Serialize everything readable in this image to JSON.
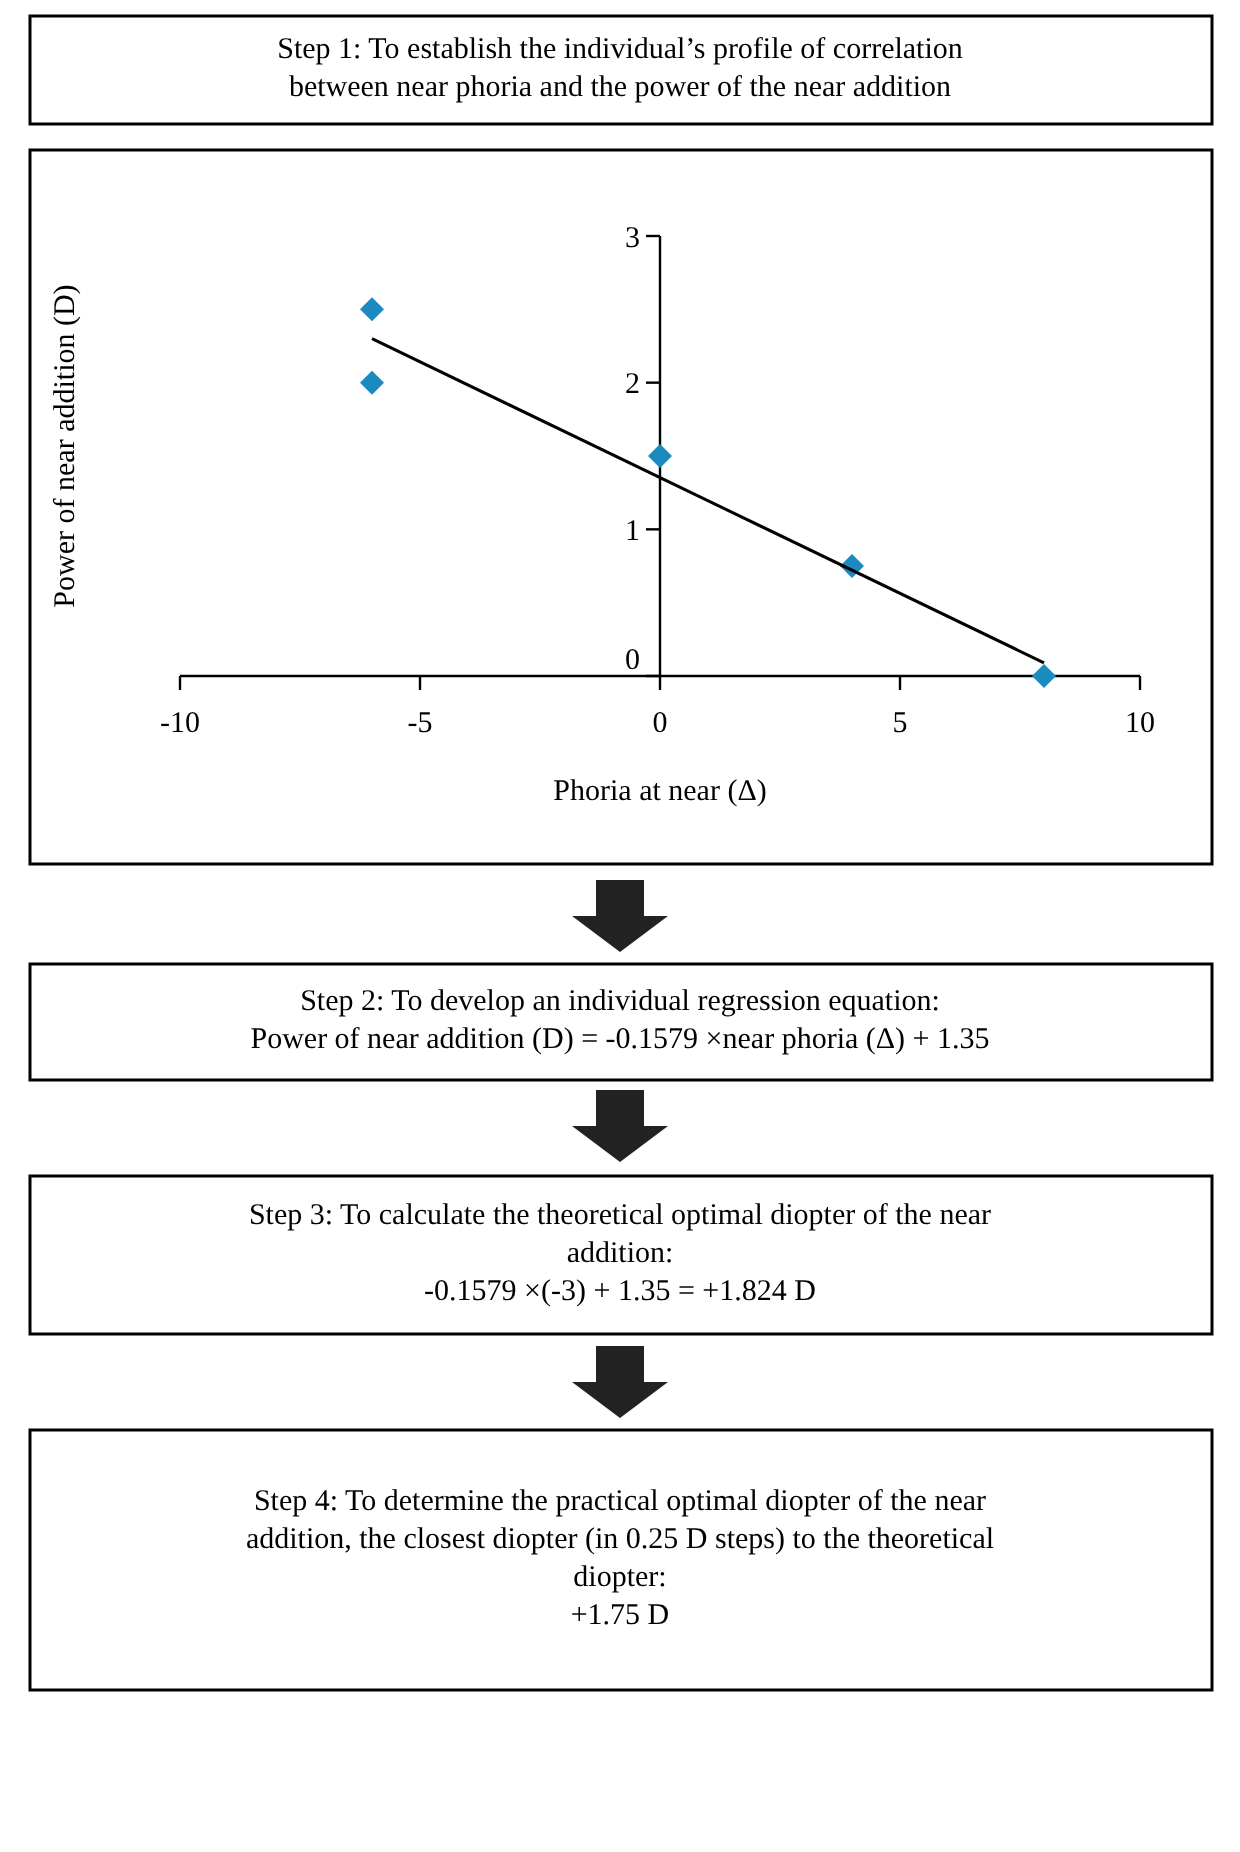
{
  "chart_data": {
    "type": "scatter",
    "xlabel": "Phoria at near (Δ)",
    "ylabel": "Power of near addition (D)",
    "xlim": [
      -10,
      10
    ],
    "ylim": [
      0,
      3
    ],
    "xticks": [
      -10,
      -5,
      0,
      5,
      10
    ],
    "yticks": [
      0,
      1,
      2,
      3
    ],
    "marker": "diamond",
    "series": [
      {
        "type": "scatter",
        "x": [
          -6,
          -6,
          0,
          4,
          8
        ],
        "values": [
          2.5,
          2,
          1.5,
          0.75,
          0
        ],
        "color": "#1a8ac0"
      },
      {
        "type": "line",
        "x": [
          -6,
          8
        ],
        "values": [
          2.3,
          0.09
        ],
        "color": "#000000",
        "marker": "none"
      }
    ],
    "annotations": [
      "Step 1: To establish the individual’s profile of correlation\nbetween near phoria and the power of the near addition",
      "Step 2: To develop an individual regression equation:\nPower of near addition (D) = -0.1579 ×near phoria (Δ) + 1.35",
      "Step 3: To calculate the theoretical optimal diopter of the near\naddition:\n-0.1579 ×(-3) + 1.35 = +1.824 D",
      "Step 4: To determine the practical optimal diopter of the near\naddition, the closest diopter (in 0.25 D steps) to the theoretical\ndiopter:\n+1.75 D"
    ]
  }
}
